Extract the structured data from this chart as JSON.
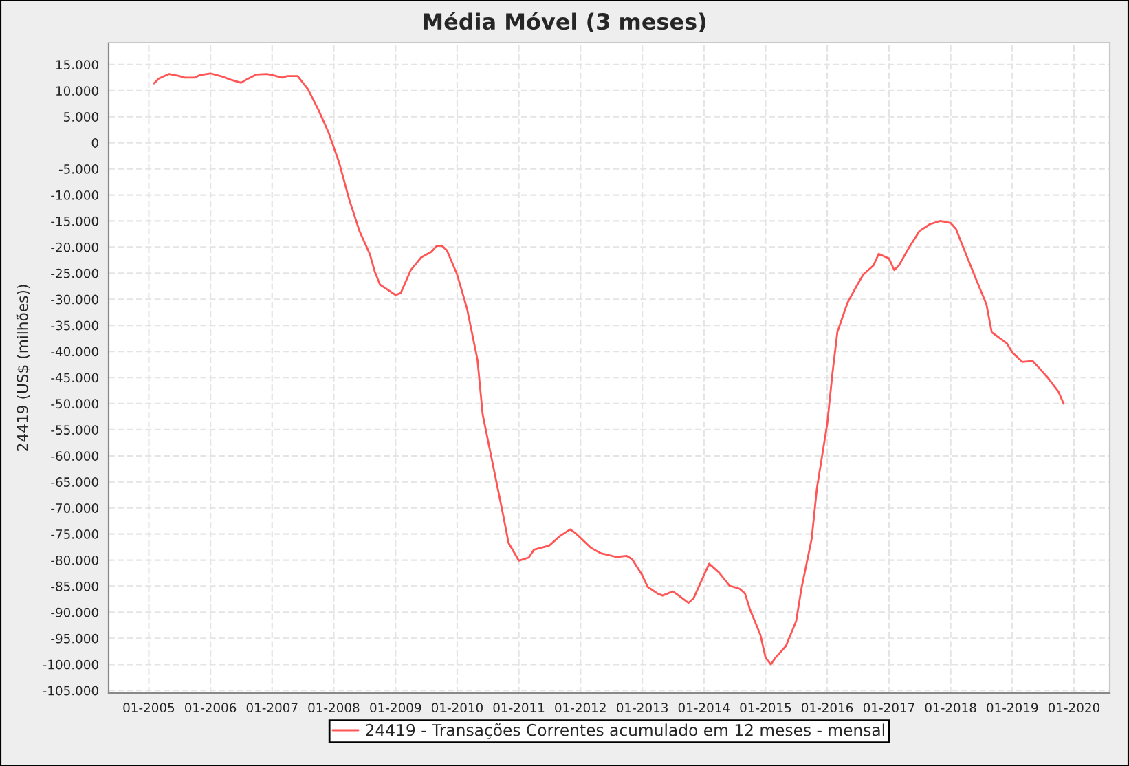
{
  "chart_data": {
    "type": "line",
    "title": "Média Móvel (3 meses)",
    "ylabel": "24419 (US$ (milhões))",
    "x": [
      "2005-02",
      "2005-03",
      "2005-05",
      "2005-07",
      "2005-08",
      "2005-10",
      "2005-11",
      "2006-01",
      "2006-03",
      "2006-05",
      "2006-07",
      "2006-08",
      "2006-10",
      "2006-12",
      "2007-01",
      "2007-03",
      "2007-04",
      "2007-06",
      "2007-08",
      "2007-10",
      "2007-12",
      "2008-02",
      "2008-04",
      "2008-06",
      "2008-08",
      "2008-09",
      "2008-10",
      "2008-12",
      "2009-01",
      "2009-02",
      "2009-04",
      "2009-06",
      "2009-08",
      "2009-09",
      "2009-10",
      "2009-11",
      "2010-01",
      "2010-03",
      "2010-05",
      "2010-06",
      "2010-08",
      "2010-10",
      "2010-11",
      "2011-01",
      "2011-03",
      "2011-04",
      "2011-07",
      "2011-09",
      "2011-11",
      "2011-12",
      "2012-03",
      "2012-05",
      "2012-08",
      "2012-10",
      "2012-11",
      "2013-01",
      "2013-02",
      "2013-04",
      "2013-05",
      "2013-07",
      "2013-08",
      "2013-10",
      "2013-11",
      "2014-01",
      "2014-02",
      "2014-04",
      "2014-06",
      "2014-08",
      "2014-09",
      "2014-10",
      "2014-12",
      "2015-01",
      "2015-02",
      "2015-03",
      "2015-05",
      "2015-07",
      "2015-08",
      "2015-10",
      "2015-11",
      "2016-01",
      "2016-02",
      "2016-03",
      "2016-05",
      "2016-07",
      "2016-08",
      "2016-10",
      "2016-11",
      "2017-01",
      "2017-02",
      "2017-03",
      "2017-05",
      "2017-07",
      "2017-09",
      "2017-11",
      "2017-12",
      "2018-01",
      "2018-02",
      "2018-04",
      "2018-06",
      "2018-08",
      "2018-09",
      "2018-12",
      "2019-01",
      "2019-03",
      "2019-05",
      "2019-06",
      "2019-08",
      "2019-10",
      "2019-11"
    ],
    "series": [
      {
        "name": "24419 - Transações Correntes acumulado em 12 meses - mensal",
        "color": "#ff5555",
        "values": [
          11400,
          12300,
          13200,
          12800,
          12500,
          12500,
          13000,
          13300,
          12800,
          12100,
          11500,
          12100,
          13100,
          13200,
          13000,
          12500,
          12800,
          12800,
          10300,
          6400,
          2000,
          -3700,
          -10800,
          -16900,
          -21300,
          -24800,
          -27200,
          -28500,
          -29200,
          -28800,
          -24400,
          -22000,
          -20900,
          -19800,
          -19700,
          -20600,
          -25300,
          -31900,
          -41600,
          -52100,
          -61800,
          -71500,
          -76700,
          -80100,
          -79500,
          -78000,
          -77200,
          -75400,
          -74100,
          -74800,
          -77600,
          -78700,
          -79400,
          -79200,
          -79800,
          -82900,
          -85100,
          -86400,
          -86800,
          -86000,
          -86700,
          -88200,
          -87300,
          -82900,
          -80700,
          -82400,
          -84900,
          -85500,
          -86400,
          -89500,
          -94300,
          -98700,
          -100000,
          -98700,
          -96500,
          -91700,
          -85500,
          -75900,
          -66200,
          -53900,
          -44200,
          -36300,
          -30600,
          -27000,
          -25300,
          -23500,
          -21300,
          -22200,
          -24400,
          -23500,
          -20000,
          -16900,
          -15600,
          -15000,
          -15200,
          -15400,
          -16500,
          -21300,
          -26200,
          -31000,
          -36300,
          -38500,
          -40200,
          -42000,
          -41800,
          -42900,
          -45100,
          -47700,
          -50000
        ]
      }
    ],
    "xlim": [
      "2004-05-08",
      "2020-07-31"
    ],
    "xticks": [
      {
        "value": "2005-01",
        "label": "01-2005"
      },
      {
        "value": "2006-01",
        "label": "01-2006"
      },
      {
        "value": "2007-01",
        "label": "01-2007"
      },
      {
        "value": "2008-01",
        "label": "01-2008"
      },
      {
        "value": "2009-01",
        "label": "01-2009"
      },
      {
        "value": "2010-01",
        "label": "01-2010"
      },
      {
        "value": "2011-01",
        "label": "01-2011"
      },
      {
        "value": "2012-01",
        "label": "01-2012"
      },
      {
        "value": "2013-01",
        "label": "01-2013"
      },
      {
        "value": "2014-01",
        "label": "01-2014"
      },
      {
        "value": "2015-01",
        "label": "01-2015"
      },
      {
        "value": "2016-01",
        "label": "01-2016"
      },
      {
        "value": "2017-01",
        "label": "01-2017"
      },
      {
        "value": "2018-01",
        "label": "01-2018"
      },
      {
        "value": "2019-01",
        "label": "01-2019"
      },
      {
        "value": "2020-01",
        "label": "01-2020"
      }
    ],
    "ylim": [
      -105500,
      19200
    ],
    "yticks": [
      {
        "value": 15000,
        "label": "15.000"
      },
      {
        "value": 10000,
        "label": "10.000"
      },
      {
        "value": 5000,
        "label": "5.000"
      },
      0,
      {
        "value": -5000,
        "label": "-5.000"
      },
      {
        "value": -10000,
        "label": "-10.000"
      },
      {
        "value": -15000,
        "label": "-15.000"
      },
      {
        "value": -20000,
        "label": "-20.000"
      },
      {
        "value": -25000,
        "label": "-25.000"
      },
      {
        "value": -30000,
        "label": "-30.000"
      },
      {
        "value": -35000,
        "label": "-35.000"
      },
      {
        "value": -40000,
        "label": "-40.000"
      },
      {
        "value": -45000,
        "label": "-45.000"
      },
      {
        "value": -50000,
        "label": "-50.000"
      },
      {
        "value": -55000,
        "label": "-55.000"
      },
      {
        "value": -60000,
        "label": "-60.000"
      },
      {
        "value": -65000,
        "label": "-65.000"
      },
      {
        "value": -70000,
        "label": "-70.000"
      },
      {
        "value": -75000,
        "label": "-75.000"
      },
      {
        "value": -80000,
        "label": "-80.000"
      },
      {
        "value": -85000,
        "label": "-85.000"
      },
      {
        "value": -90000,
        "label": "-90.000"
      },
      {
        "value": -95000,
        "label": "-95.000"
      },
      {
        "value": -100000,
        "label": "-100.000"
      },
      {
        "value": -105000,
        "label": "-105.000"
      }
    ],
    "grid": true,
    "legend": "bottom"
  }
}
